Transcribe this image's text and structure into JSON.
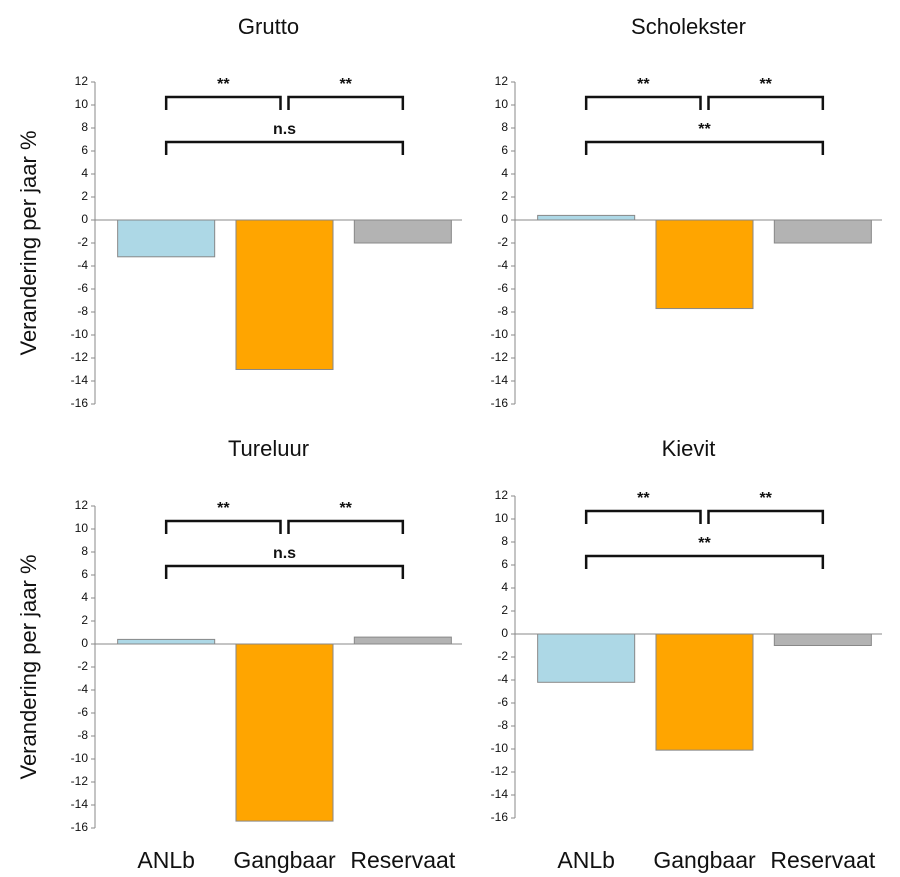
{
  "chart_data": [
    {
      "type": "bar",
      "title": "Grutto",
      "ylabel": "Verandering per jaar %",
      "categories": [
        null,
        null,
        null
      ],
      "values": [
        -3.2,
        -13,
        -2
      ],
      "colors": [
        "#add8e6",
        "#ffa500",
        "#b3b3b3"
      ],
      "ylim": [
        -16,
        12
      ],
      "yticks": [
        12,
        10,
        8,
        6,
        4,
        2,
        0,
        -2,
        -4,
        -6,
        -8,
        -10,
        -12,
        -14,
        -16
      ],
      "brackets": [
        {
          "span": [
            0,
            1
          ],
          "label": "**"
        },
        {
          "span": [
            1,
            2
          ],
          "label": "**"
        },
        {
          "span": [
            0,
            2
          ],
          "label": "n.s"
        }
      ]
    },
    {
      "type": "bar",
      "title": "Scholekster",
      "categories": [
        null,
        null,
        null
      ],
      "values": [
        0.4,
        -7.7,
        -2
      ],
      "colors": [
        "#add8e6",
        "#ffa500",
        "#b3b3b3"
      ],
      "ylim": [
        -16,
        12
      ],
      "yticks": [
        12,
        10,
        8,
        6,
        4,
        2,
        0,
        -2,
        -4,
        -6,
        -8,
        -10,
        -12,
        -14,
        -16
      ],
      "brackets": [
        {
          "span": [
            0,
            1
          ],
          "label": "**"
        },
        {
          "span": [
            1,
            2
          ],
          "label": "**"
        },
        {
          "span": [
            0,
            2
          ],
          "label": "**"
        }
      ]
    },
    {
      "type": "bar",
      "title": "Tureluur",
      "ylabel": "Verandering per jaar %",
      "categories": [
        "ANLb",
        "Gangbaar",
        "Reservaat"
      ],
      "values": [
        0.4,
        -15.4,
        0.6
      ],
      "colors": [
        "#add8e6",
        "#ffa500",
        "#b3b3b3"
      ],
      "ylim": [
        -16,
        12
      ],
      "yticks": [
        12,
        10,
        8,
        6,
        4,
        2,
        0,
        -2,
        -4,
        -6,
        -8,
        -10,
        -12,
        -14,
        -16
      ],
      "brackets": [
        {
          "span": [
            0,
            1
          ],
          "label": "**"
        },
        {
          "span": [
            1,
            2
          ],
          "label": "**"
        },
        {
          "span": [
            0,
            2
          ],
          "label": "n.s"
        }
      ]
    },
    {
      "type": "bar",
      "title": "Kievit",
      "categories": [
        "ANLb",
        "Gangbaar",
        "Reservaat"
      ],
      "values": [
        -4.2,
        -10.1,
        -1
      ],
      "colors": [
        "#add8e6",
        "#ffa500",
        "#b3b3b3"
      ],
      "ylim": [
        -16,
        12
      ],
      "yticks": [
        12,
        10,
        8,
        6,
        4,
        2,
        0,
        -2,
        -4,
        -6,
        -8,
        -10,
        -12,
        -14,
        -16
      ],
      "brackets": [
        {
          "span": [
            0,
            1
          ],
          "label": "**"
        },
        {
          "span": [
            1,
            2
          ],
          "label": "**"
        },
        {
          "span": [
            0,
            2
          ],
          "label": "**"
        }
      ]
    }
  ]
}
